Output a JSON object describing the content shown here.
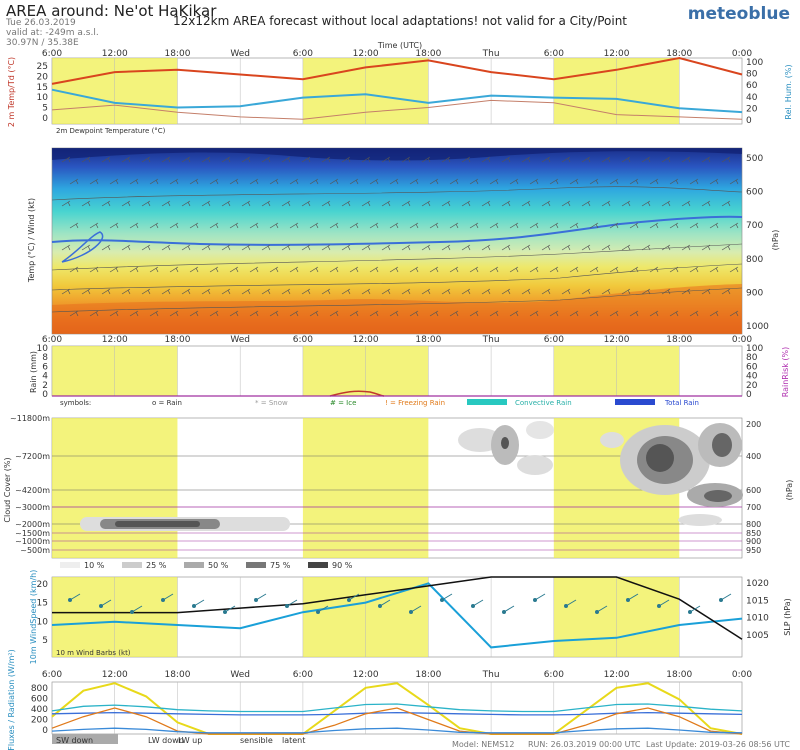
{
  "header": {
    "title": "AREA around: Ne'ot HaKikar",
    "date": "Tue 26.03.2019",
    "valid_at": "valid at: -249m a.s.l.",
    "coords": "30.97N / 35.38E",
    "notice": "12x12km AREA forecast without local adaptations! not valid for a City/Point",
    "logo": "meteoblue"
  },
  "time_axis": {
    "title": "Time (UTC)",
    "tick_labels": [
      "6:00",
      "12:00",
      "18:00",
      "Wed",
      "6:00",
      "12:00",
      "18:00",
      "Thu",
      "6:00",
      "12:00",
      "18:00",
      "0:00"
    ]
  },
  "colors": {
    "daylight": "#efef50",
    "temp": "#d9451e",
    "humidity": "#3aa8d8",
    "pressure_line": "#111111"
  },
  "panels": {
    "temperature": {
      "left_label": "2 m Temp/Td (°C)",
      "right_label": "Rel. Hum. (%)",
      "left_ticks": [
        "25",
        "20",
        "15",
        "10",
        "5",
        "0"
      ],
      "right_ticks": [
        "100",
        "80",
        "60",
        "40",
        "20",
        "0"
      ],
      "note": "2m Dewpoint Temperature (°C)"
    },
    "profile": {
      "left_label": "Temp (°C) / Wind (kt)",
      "right_label": "(hPa)",
      "right_ticks": [
        "500",
        "600",
        "700",
        "800",
        "900",
        "1000"
      ]
    },
    "rain": {
      "left_label": "Rain (mm)",
      "right_label": "RainRisk (%)",
      "left_ticks": [
        "10",
        "8",
        "6",
        "4",
        "2",
        "0"
      ],
      "right_ticks": [
        "100",
        "80",
        "60",
        "40",
        "20",
        "0"
      ]
    },
    "legend": {
      "symbols": "symbols:",
      "rain": "o = Rain",
      "snow": "* = Snow",
      "ice": "# = Ice",
      "freezing": "! = Freezing Rain",
      "convective": "Convective Rain",
      "total": "Total Rain"
    },
    "cloud": {
      "left_label": "Cloud Cover (%)",
      "right_label": "(hPa)",
      "left_ticks": [
        "~11800m",
        "~7200m",
        "~4200m",
        "~3000m",
        "~2000m",
        "~1500m",
        "~1000m",
        "~500m"
      ],
      "right_ticks": [
        "200",
        "400",
        "600",
        "700",
        "800",
        "850",
        "900",
        "950"
      ],
      "legend": [
        "10 %",
        "25 %",
        "50 %",
        "75 %",
        "90 %"
      ]
    },
    "wind": {
      "left_label": "10m WindSpeed (km/h)",
      "right_label": "SLP (hPa)",
      "left_ticks": [
        "20",
        "15",
        "10",
        "5"
      ],
      "right_ticks": [
        "1020",
        "1015",
        "1010",
        "1005"
      ],
      "barbs_label": "10 m Wind Barbs (kt)"
    },
    "radiation": {
      "left_label": "Fluxes / Radiation (W/m²)",
      "left_ticks": [
        "800",
        "600",
        "400",
        "200",
        "0"
      ],
      "legend": [
        "SW down",
        "LW down",
        "LW up",
        "sensible",
        "latent"
      ],
      "legend_colors": [
        "#e8d91a",
        "#3a6fd8",
        "#2bb3c8",
        "#e07a1a",
        "#3a8ad8"
      ]
    }
  },
  "footer": {
    "model": "Model: NEMS12",
    "run": "RUN: 26.03.2019 00:00 UTC",
    "last_update": "Last Update: 2019-03-26 08:56 UTC"
  },
  "chart_data": [
    {
      "type": "line",
      "title": "2 m Temp/Td (°C)",
      "x": [
        0,
        6,
        12,
        18,
        24,
        30,
        36,
        42,
        48,
        54,
        60,
        66
      ],
      "series": [
        {
          "name": "2 m Temp",
          "values": [
            17,
            22,
            23,
            21,
            19,
            24,
            27,
            22,
            19,
            23,
            28,
            21
          ]
        },
        {
          "name": "2m Dewpoint Temperature (°C)",
          "values": [
            6,
            8,
            5,
            3,
            2,
            5,
            7,
            10,
            9,
            4,
            3,
            2
          ]
        }
      ],
      "ylim": [
        0,
        28
      ]
    },
    {
      "type": "line",
      "title": "Rel. Hum. (%)",
      "x": [
        0,
        6,
        12,
        18,
        24,
        30,
        36,
        42,
        48,
        54,
        60,
        66
      ],
      "series": [
        {
          "name": "Rel. Hum.",
          "values": [
            52,
            32,
            25,
            27,
            40,
            45,
            32,
            43,
            40,
            38,
            24,
            18
          ]
        }
      ],
      "ylim": [
        0,
        100
      ]
    },
    {
      "type": "line",
      "title": "10m WindSpeed (km/h)",
      "x": [
        0,
        6,
        12,
        18,
        24,
        30,
        36,
        42,
        48,
        54,
        60,
        66
      ],
      "series": [
        {
          "name": "10m WindSpeed",
          "values": [
            10,
            11,
            10,
            9,
            14,
            17,
            23,
            3,
            5,
            6,
            10,
            12
          ]
        }
      ],
      "ylim": [
        0,
        25
      ]
    },
    {
      "type": "line",
      "title": "SLP (hPa)",
      "x": [
        0,
        6,
        12,
        18,
        24,
        30,
        36,
        42,
        48,
        54,
        60,
        66
      ],
      "series": [
        {
          "name": "SLP",
          "values": [
            1014,
            1014,
            1014,
            1015,
            1016,
            1018,
            1020,
            1022,
            1022,
            1022,
            1017,
            1008
          ]
        }
      ],
      "ylim": [
        1004,
        1022
      ]
    },
    {
      "type": "line",
      "title": "Fluxes / Radiation (W/m²)",
      "x": [
        0,
        3,
        6,
        9,
        12,
        15,
        18,
        21,
        24,
        27,
        30,
        33,
        36,
        39,
        42,
        45,
        48,
        51,
        54,
        57,
        60,
        63,
        66
      ],
      "series": [
        {
          "name": "SW down",
          "values": [
            300,
            750,
            880,
            650,
            200,
            0,
            0,
            0,
            0,
            400,
            800,
            880,
            500,
            100,
            0,
            0,
            0,
            400,
            800,
            880,
            600,
            100,
            0
          ]
        },
        {
          "name": "LW down",
          "values": [
            350,
            360,
            370,
            360,
            350,
            340,
            330,
            330,
            330,
            340,
            360,
            370,
            360,
            350,
            340,
            330,
            330,
            340,
            360,
            370,
            360,
            350,
            340
          ]
        },
        {
          "name": "LW up",
          "values": [
            400,
            480,
            500,
            470,
            420,
            400,
            390,
            390,
            390,
            450,
            510,
            520,
            470,
            420,
            400,
            390,
            390,
            450,
            510,
            520,
            480,
            430,
            400
          ]
        },
        {
          "name": "sensible",
          "values": [
            100,
            300,
            450,
            300,
            50,
            0,
            0,
            0,
            0,
            150,
            350,
            450,
            250,
            50,
            0,
            0,
            0,
            150,
            350,
            450,
            300,
            50,
            0
          ]
        },
        {
          "name": "latent",
          "values": [
            50,
            80,
            100,
            80,
            40,
            20,
            20,
            20,
            20,
            60,
            90,
            100,
            70,
            30,
            20,
            20,
            20,
            60,
            90,
            100,
            70,
            30,
            20
          ]
        }
      ],
      "ylim": [
        0,
        900
      ]
    }
  ]
}
